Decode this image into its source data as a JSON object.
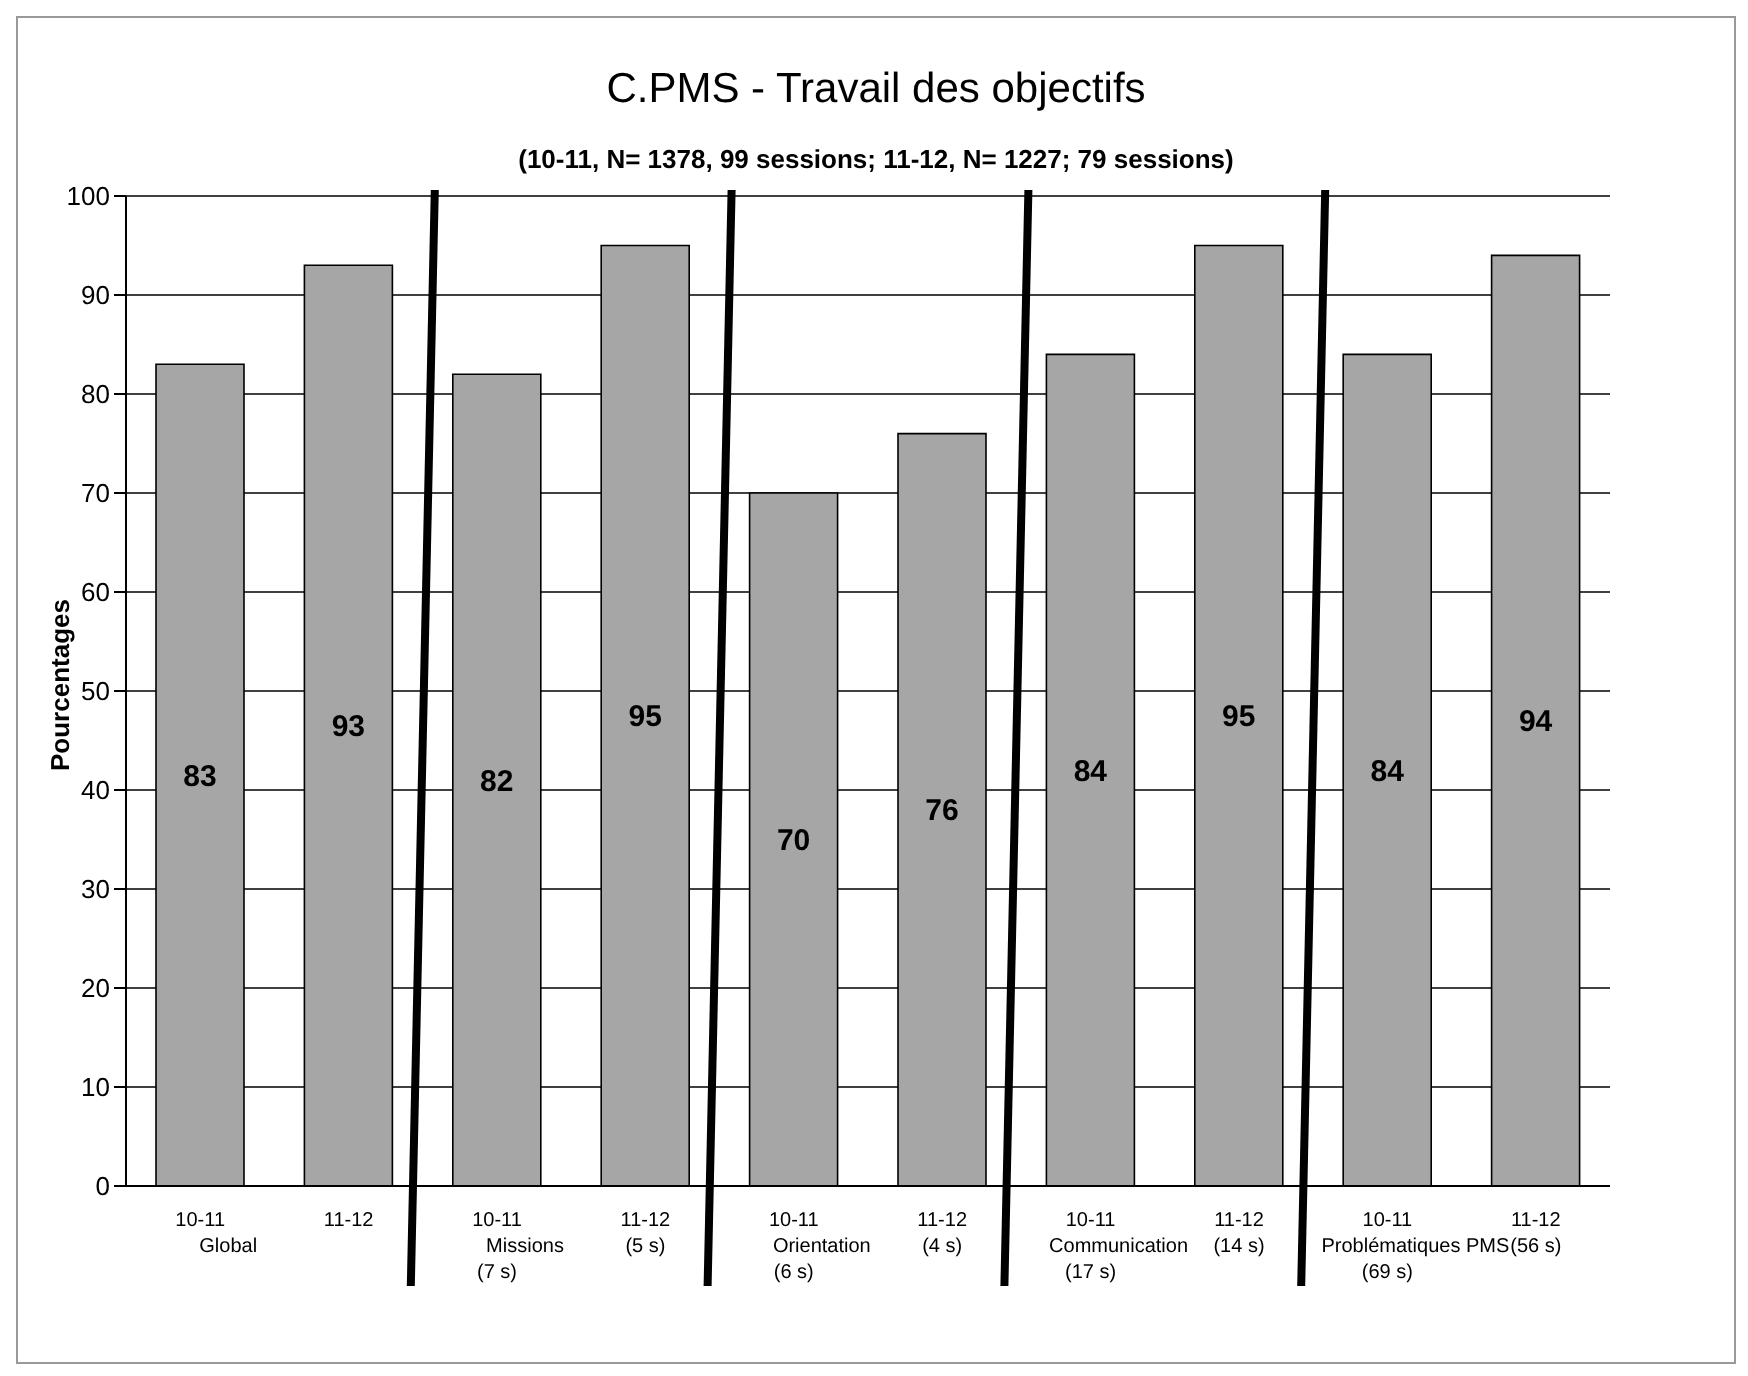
{
  "chart_data": {
    "type": "bar",
    "title": "C.PMS - Travail des objectifs",
    "subtitle": "(10-11, N= 1378, 99 sessions; 11-12, N= 1227; 79 sessions)",
    "ylabel": "Pourcentages",
    "categories": [
      "10-11\nGlobal",
      "11-12",
      "10-11\nMissions\n(7 s)",
      "11-12\n\n(5 s)",
      "10-11\nOrientation\n(6 s)",
      "11-12\n\n(4 s)",
      "10-11\nCommunication\n(17 s)",
      "11-12\n\n(14 s)",
      "10-11\nProblématiques PMS\n(69 s)",
      "11-12\n\n(56 s)"
    ],
    "values": [
      83,
      93,
      82,
      95,
      70,
      76,
      84,
      95,
      84,
      94
    ],
    "color": "#a6a6a6",
    "ylim": [
      0,
      100
    ],
    "yticks": [
      0,
      10,
      20,
      30,
      40,
      50,
      60,
      70,
      80,
      90,
      100
    ],
    "grid": "y",
    "data_labels": true,
    "legend": false
  }
}
